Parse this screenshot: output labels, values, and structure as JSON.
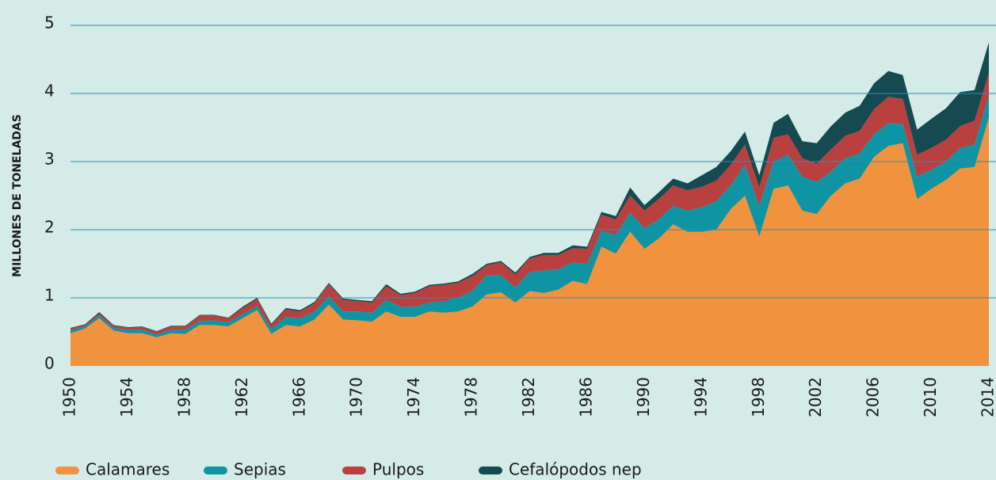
{
  "chart_data": {
    "type": "stacked_area",
    "y_label": "MILLONES DE TONELADAS",
    "x": [
      1950,
      1951,
      1952,
      1953,
      1954,
      1955,
      1956,
      1957,
      1958,
      1959,
      1960,
      1961,
      1962,
      1963,
      1964,
      1965,
      1966,
      1967,
      1968,
      1969,
      1970,
      1971,
      1972,
      1973,
      1974,
      1975,
      1976,
      1977,
      1978,
      1979,
      1980,
      1981,
      1982,
      1983,
      1984,
      1985,
      1986,
      1987,
      1988,
      1989,
      1990,
      1991,
      1992,
      1993,
      1994,
      1995,
      1996,
      1997,
      1998,
      1999,
      2000,
      2001,
      2002,
      2003,
      2004,
      2005,
      2006,
      2007,
      2008,
      2009,
      2010,
      2011,
      2012,
      2013,
      2014
    ],
    "xlim": [
      1950,
      2014
    ],
    "xticks": [
      1950,
      1954,
      1958,
      1962,
      1966,
      1970,
      1974,
      1978,
      1982,
      1986,
      1990,
      1994,
      1998,
      2002,
      2006,
      2010,
      2014
    ],
    "ylim": [
      0,
      5
    ],
    "yticks": [
      0,
      1,
      2,
      3,
      4,
      5
    ],
    "grid": true,
    "legend": "bottom",
    "series": [
      {
        "name": "Calamares",
        "color": "#f0923e",
        "values": [
          0.48,
          0.55,
          0.7,
          0.52,
          0.48,
          0.48,
          0.42,
          0.48,
          0.47,
          0.6,
          0.6,
          0.58,
          0.7,
          0.82,
          0.47,
          0.6,
          0.58,
          0.68,
          0.9,
          0.68,
          0.67,
          0.65,
          0.8,
          0.72,
          0.72,
          0.8,
          0.78,
          0.8,
          0.87,
          1.05,
          1.08,
          0.93,
          1.1,
          1.07,
          1.12,
          1.25,
          1.2,
          1.75,
          1.65,
          1.97,
          1.72,
          1.87,
          2.08,
          1.97,
          1.97,
          2.0,
          2.3,
          2.5,
          1.9,
          2.6,
          2.65,
          2.28,
          2.23,
          2.5,
          2.68,
          2.75,
          3.07,
          3.23,
          3.27,
          2.45,
          2.6,
          2.73,
          2.9,
          2.92,
          3.65
        ]
      },
      {
        "name": "Sepias",
        "color": "#0f94a3",
        "values": [
          0.04,
          0.03,
          0.04,
          0.04,
          0.05,
          0.05,
          0.04,
          0.05,
          0.06,
          0.06,
          0.07,
          0.06,
          0.06,
          0.06,
          0.07,
          0.12,
          0.12,
          0.12,
          0.12,
          0.12,
          0.13,
          0.13,
          0.17,
          0.15,
          0.15,
          0.13,
          0.17,
          0.2,
          0.23,
          0.28,
          0.25,
          0.22,
          0.28,
          0.33,
          0.3,
          0.27,
          0.3,
          0.23,
          0.27,
          0.28,
          0.3,
          0.28,
          0.27,
          0.31,
          0.36,
          0.42,
          0.35,
          0.45,
          0.45,
          0.4,
          0.45,
          0.5,
          0.47,
          0.35,
          0.37,
          0.37,
          0.33,
          0.34,
          0.28,
          0.33,
          0.28,
          0.27,
          0.3,
          0.33,
          0.32
        ]
      },
      {
        "name": "Pulpos",
        "color": "#b8403f",
        "values": [
          0.03,
          0.02,
          0.03,
          0.03,
          0.03,
          0.04,
          0.04,
          0.05,
          0.05,
          0.08,
          0.07,
          0.06,
          0.09,
          0.1,
          0.06,
          0.11,
          0.1,
          0.12,
          0.18,
          0.17,
          0.15,
          0.15,
          0.2,
          0.17,
          0.2,
          0.24,
          0.24,
          0.22,
          0.22,
          0.15,
          0.19,
          0.19,
          0.2,
          0.23,
          0.21,
          0.21,
          0.22,
          0.24,
          0.23,
          0.25,
          0.26,
          0.3,
          0.3,
          0.3,
          0.3,
          0.3,
          0.3,
          0.3,
          0.27,
          0.35,
          0.3,
          0.27,
          0.27,
          0.33,
          0.33,
          0.33,
          0.37,
          0.38,
          0.37,
          0.32,
          0.32,
          0.32,
          0.32,
          0.35,
          0.33
        ]
      },
      {
        "name": "Cefalópodos nep",
        "color": "#154a50",
        "values": [
          0.01,
          0.01,
          0.02,
          0.01,
          0.01,
          0.01,
          0.01,
          0.01,
          0.01,
          0.01,
          0.01,
          0.01,
          0.02,
          0.02,
          0.02,
          0.02,
          0.02,
          0.02,
          0.02,
          0.02,
          0.02,
          0.02,
          0.03,
          0.02,
          0.02,
          0.02,
          0.02,
          0.02,
          0.03,
          0.02,
          0.02,
          0.03,
          0.02,
          0.03,
          0.03,
          0.04,
          0.03,
          0.04,
          0.05,
          0.12,
          0.08,
          0.1,
          0.1,
          0.1,
          0.17,
          0.2,
          0.2,
          0.19,
          0.18,
          0.22,
          0.3,
          0.25,
          0.3,
          0.34,
          0.34,
          0.37,
          0.38,
          0.38,
          0.35,
          0.37,
          0.43,
          0.46,
          0.5,
          0.45,
          0.45
        ]
      }
    ]
  }
}
